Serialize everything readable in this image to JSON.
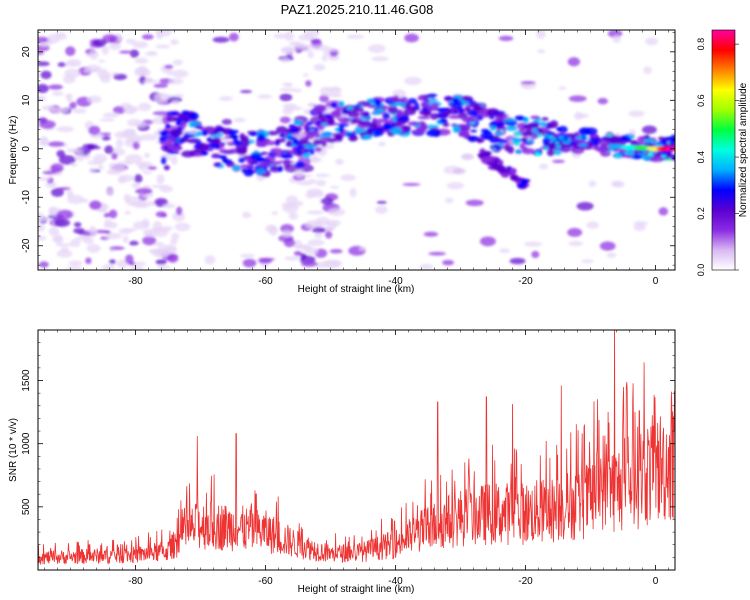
{
  "title": "PAZ1.2025.210.11.46.G08",
  "chart_data": [
    {
      "type": "heatmap",
      "xlabel": "Height of straight line (km)",
      "ylabel": "Frequency (Hz)",
      "xlim": [
        -95,
        3
      ],
      "ylim": [
        -25,
        24.5
      ],
      "xticks": [
        -80,
        -60,
        -40,
        -20,
        0
      ],
      "yticks": [
        -20,
        -10,
        0,
        10,
        20
      ],
      "colorbar": {
        "label": "Normalized spectral amplitude",
        "range": [
          0,
          0.85
        ],
        "ticks": [
          0.0,
          0.2,
          0.4,
          0.6,
          0.8
        ],
        "colormap": [
          "#ffffff",
          "#d9b8f2",
          "#8a2be2",
          "#5a00d0",
          "#0000ff",
          "#00b0ff",
          "#00ffe0",
          "#00ff40",
          "#a0ff00",
          "#ffff00",
          "#ff8000",
          "#ff0000",
          "#ff00a0"
        ]
      },
      "ridge": {
        "description_points": [
          {
            "x": -75,
            "y": 4
          },
          {
            "x": -70,
            "y": 2
          },
          {
            "x": -65,
            "y": 0
          },
          {
            "x": -60,
            "y": -1
          },
          {
            "x": -55,
            "y": 1
          },
          {
            "x": -50,
            "y": 5
          },
          {
            "x": -45,
            "y": 6
          },
          {
            "x": -40,
            "y": 6.5
          },
          {
            "x": -35,
            "y": 7
          },
          {
            "x": -30,
            "y": 7
          },
          {
            "x": -25,
            "y": 4
          },
          {
            "x": -20,
            "y": 3
          },
          {
            "x": -15,
            "y": 2
          },
          {
            "x": -10,
            "y": 1.5
          },
          {
            "x": -5,
            "y": 0.5
          },
          {
            "x": 0,
            "y": 0
          },
          {
            "x": 3,
            "y": 0
          }
        ]
      }
    },
    {
      "type": "line",
      "xlabel": "Height of straight line (km)",
      "ylabel": "SNR (10 * v/v)",
      "xlim": [
        -95,
        3
      ],
      "ylim": [
        0,
        1900
      ],
      "xticks": [
        -80,
        -60,
        -40,
        -20,
        0
      ],
      "yticks": [
        500,
        1000,
        1500
      ],
      "series": [
        {
          "color": "#ee3333",
          "envelope_km": [
            -95,
            -90,
            -85,
            -80,
            -75,
            -72,
            -70,
            -65,
            -60,
            -55,
            -50,
            -45,
            -40,
            -35,
            -30,
            -25,
            -20,
            -15,
            -10,
            -8,
            -6,
            -4,
            -2,
            0,
            3
          ],
          "envelope_snr": [
            120,
            130,
            140,
            150,
            190,
            380,
            450,
            420,
            380,
            250,
            160,
            180,
            260,
            420,
            520,
            560,
            560,
            600,
            700,
            900,
            800,
            880,
            940,
            1000,
            1080
          ],
          "peaks": [
            {
              "x": -70.5,
              "y": 1060
            },
            {
              "x": -64.5,
              "y": 1080
            },
            {
              "x": -33.5,
              "y": 1330
            },
            {
              "x": -26,
              "y": 1370
            },
            {
              "x": -22,
              "y": 1310
            },
            {
              "x": -14.5,
              "y": 1460
            },
            {
              "x": -6.3,
              "y": 1900
            },
            {
              "x": -2.5,
              "y": 1260
            },
            {
              "x": 2.5,
              "y": 1320
            }
          ]
        }
      ]
    }
  ]
}
